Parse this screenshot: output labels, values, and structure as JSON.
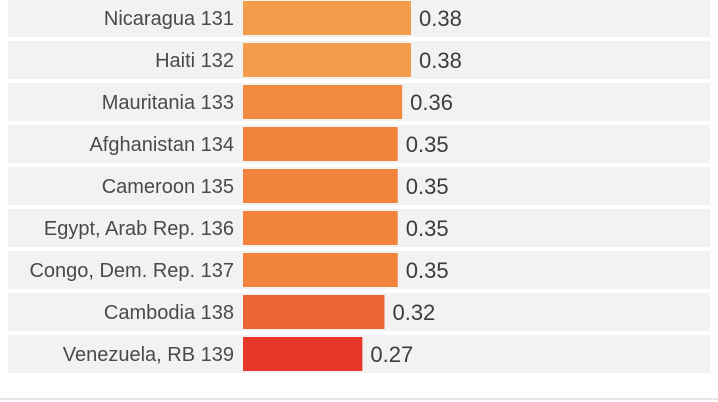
{
  "chart_data": {
    "type": "bar",
    "orientation": "horizontal",
    "categories": [
      "Nicaragua 131",
      "Haiti 132",
      "Mauritania 133",
      "Afghanistan 134",
      "Cameroon 135",
      "Egypt, Arab Rep. 136",
      "Congo, Dem. Rep. 137",
      "Cambodia 138",
      "Venezuela, RB 139"
    ],
    "values": [
      0.38,
      0.38,
      0.36,
      0.35,
      0.35,
      0.35,
      0.35,
      0.32,
      0.27
    ],
    "value_labels": [
      "0.38",
      "0.38",
      "0.36",
      "0.35",
      "0.35",
      "0.35",
      "0.35",
      "0.32",
      "0.27"
    ],
    "bar_colors": [
      "#f39c4a",
      "#f39c4a",
      "#f28a40",
      "#f1833d",
      "#f1833d",
      "#f1833d",
      "#f1833d",
      "#ee6535",
      "#e8362a"
    ],
    "row_stripe_color": "#f2f2f2",
    "title": "",
    "xlabel": "",
    "ylabel": "",
    "xlim": [
      0,
      0.38
    ],
    "grid": false,
    "legend": "none"
  }
}
